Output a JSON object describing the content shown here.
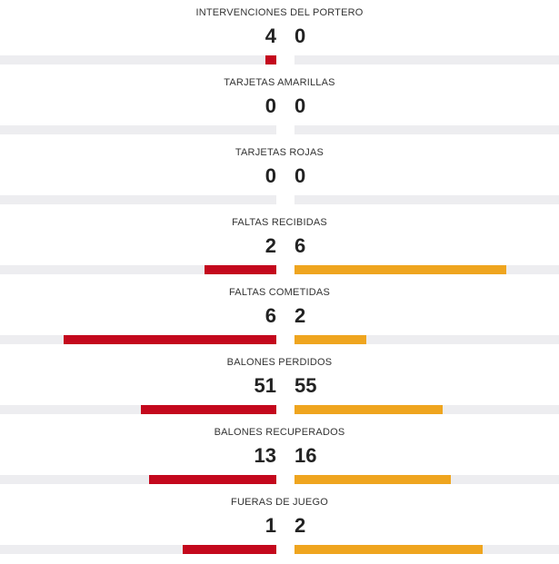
{
  "colors": {
    "home_bar": "#c4081d",
    "away_bar": "#efa51f",
    "track": "#ededf0"
  },
  "stats": [
    {
      "label": "INTERVENCIONES DEL PORTERO",
      "home": "4",
      "away": "0",
      "home_fill": 0.04,
      "away_fill": 0.0
    },
    {
      "label": "TARJETAS AMARILLAS",
      "home": "0",
      "away": "0",
      "home_fill": 0.0,
      "away_fill": 0.0
    },
    {
      "label": "TARJETAS ROJAS",
      "home": "0",
      "away": "0",
      "home_fill": 0.0,
      "away_fill": 0.0
    },
    {
      "label": "FALTAS RECIBIDAS",
      "home": "2",
      "away": "6",
      "home_fill": 0.26,
      "away_fill": 0.8
    },
    {
      "label": "FALTAS COMETIDAS",
      "home": "6",
      "away": "2",
      "home_fill": 0.77,
      "away_fill": 0.27
    },
    {
      "label": "BALONES PERDIDOS",
      "home": "51",
      "away": "55",
      "home_fill": 0.49,
      "away_fill": 0.56
    },
    {
      "label": "BALONES RECUPERADOS",
      "home": "13",
      "away": "16",
      "home_fill": 0.46,
      "away_fill": 0.59
    },
    {
      "label": "FUERAS DE JUEGO",
      "home": "1",
      "away": "2",
      "home_fill": 0.34,
      "away_fill": 0.71
    }
  ]
}
